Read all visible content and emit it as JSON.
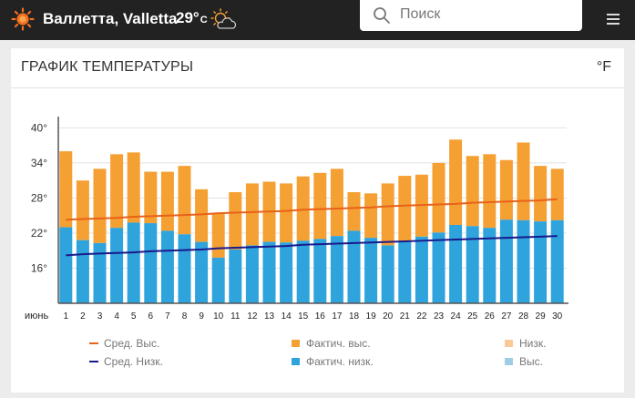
{
  "header": {
    "city": "Валлетта,",
    "city_en": "Valletta",
    "temp": "29°",
    "temp_unit": "C",
    "search_placeholder": "Поиск",
    "icons": [
      "sun-logo-icon",
      "partly-cloudy-icon",
      "search-icon",
      "menu-icon"
    ]
  },
  "card": {
    "title": "ГРАФИК ТЕМПЕРАТУРЫ",
    "unit_toggle": "°F"
  },
  "colors": {
    "avg_high": "#e8621a",
    "avg_low": "#1a1a8c",
    "actual_high": "#f5a033",
    "actual_low": "#2ea3dc",
    "record_low": "#f9c99a",
    "record_high": "#9fcde6"
  },
  "chart_data": {
    "type": "bar",
    "month_label": "июнь",
    "categories": [
      "1",
      "2",
      "3",
      "4",
      "5",
      "6",
      "7",
      "8",
      "9",
      "10",
      "11",
      "12",
      "13",
      "14",
      "15",
      "16",
      "17",
      "18",
      "19",
      "20",
      "21",
      "22",
      "23",
      "24",
      "25",
      "26",
      "27",
      "28",
      "29",
      "30"
    ],
    "y_ticks": [
      "40°",
      "34°",
      "28°",
      "22°",
      "16°"
    ],
    "ylim": [
      10,
      41
    ],
    "grid": true,
    "series": [
      {
        "name": "Фактич. выс.",
        "values": [
          36,
          31,
          33,
          35.5,
          35.8,
          32.5,
          32.5,
          33.5,
          29.5,
          25.5,
          29,
          30.5,
          30.8,
          30.5,
          31.7,
          32.3,
          33,
          29,
          28.8,
          30.5,
          31.8,
          32,
          34,
          38,
          35.2,
          35.5,
          34.5,
          37.5,
          33.5,
          33
        ]
      },
      {
        "name": "Фактич. низк.",
        "values": [
          23,
          20.8,
          20.3,
          22.9,
          23.8,
          23.7,
          22.4,
          21.8,
          20.5,
          17.8,
          19.2,
          19.9,
          20.5,
          20.4,
          20.7,
          21,
          21.5,
          22.4,
          21.2,
          19.9,
          20.5,
          21.4,
          22.1,
          23.4,
          23.2,
          22.9,
          24.3,
          24.2,
          24,
          24.2
        ]
      },
      {
        "name": "Сред. Выс.",
        "values": [
          24.3,
          24.4,
          24.5,
          24.6,
          24.8,
          24.9,
          25,
          25.1,
          25.2,
          25.4,
          25.5,
          25.6,
          25.7,
          25.8,
          26,
          26.1,
          26.2,
          26.3,
          26.4,
          26.6,
          26.7,
          26.8,
          26.9,
          27,
          27.2,
          27.3,
          27.4,
          27.5,
          27.6,
          27.8
        ]
      },
      {
        "name": "Сред. Низк.",
        "values": [
          18.2,
          18.4,
          18.5,
          18.6,
          18.7,
          18.9,
          19,
          19.1,
          19.2,
          19.4,
          19.5,
          19.6,
          19.7,
          19.8,
          20,
          20.1,
          20.2,
          20.3,
          20.4,
          20.5,
          20.6,
          20.7,
          20.8,
          20.9,
          21,
          21.1,
          21.2,
          21.3,
          21.4,
          21.5
        ]
      }
    ],
    "legend": [
      {
        "label": "Сред. Выс.",
        "kind": "line",
        "color_key": "avg_high"
      },
      {
        "label": "Фактич. выс.",
        "kind": "box",
        "color_key": "actual_high"
      },
      {
        "label": "Низк.",
        "kind": "box",
        "color_key": "record_low"
      },
      {
        "label": "Сред. Низк.",
        "kind": "line",
        "color_key": "avg_low"
      },
      {
        "label": "Фактич. низк.",
        "kind": "box",
        "color_key": "actual_low"
      },
      {
        "label": "Выс.",
        "kind": "box",
        "color_key": "record_high"
      }
    ],
    "legend_placement": "bottom"
  }
}
